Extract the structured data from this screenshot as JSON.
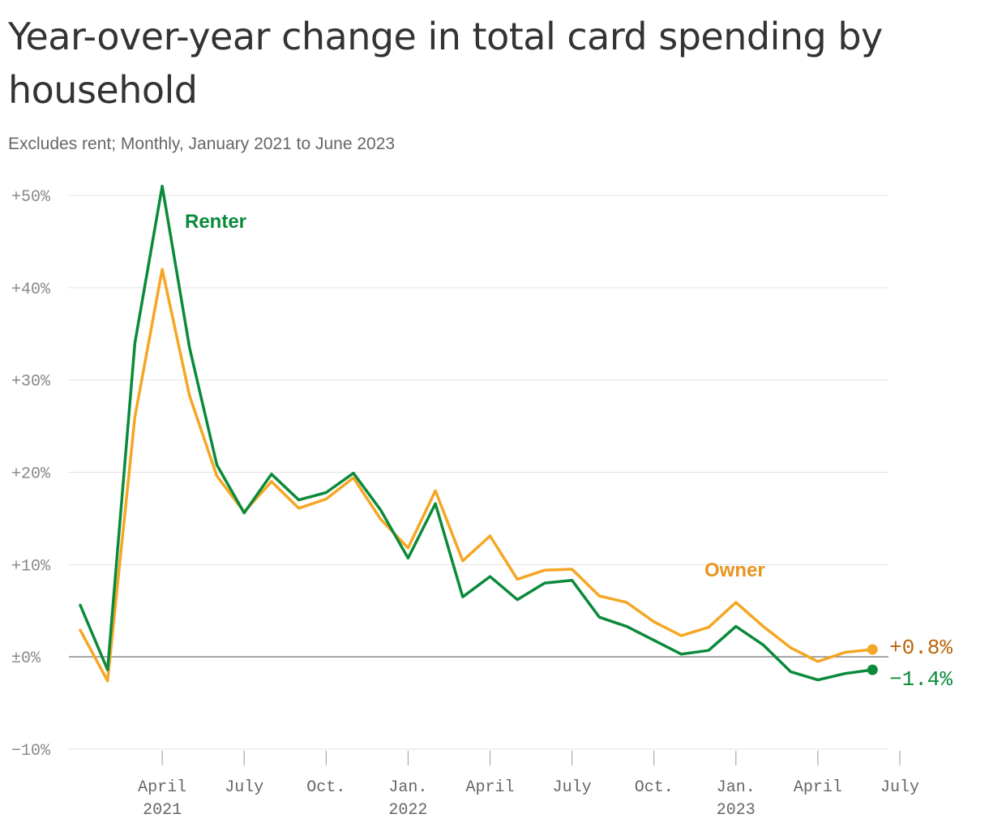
{
  "title": "Year-over-year change in total card spending by household",
  "subtitle": "Excludes rent; Monthly, January 2021 to June 2023",
  "colors": {
    "renter": "#0a8a3a",
    "owner": "#f5a623",
    "owner_label": "#e8951e",
    "owner_end_label": "#b8650a",
    "grid": "#e2e2e2",
    "zero_line": "#888888"
  },
  "chart_data": {
    "type": "line",
    "x": [
      "2021-01",
      "2021-02",
      "2021-03",
      "2021-04",
      "2021-05",
      "2021-06",
      "2021-07",
      "2021-08",
      "2021-09",
      "2021-10",
      "2021-11",
      "2021-12",
      "2022-01",
      "2022-02",
      "2022-03",
      "2022-04",
      "2022-05",
      "2022-06",
      "2022-07",
      "2022-08",
      "2022-09",
      "2022-10",
      "2022-11",
      "2022-12",
      "2023-01",
      "2023-02",
      "2023-03",
      "2023-04",
      "2023-05",
      "2023-06"
    ],
    "series": [
      {
        "name": "Renter",
        "end_label": "−1.4%",
        "values": [
          5.6,
          -1.4,
          34.0,
          51.0,
          33.5,
          20.8,
          15.6,
          19.8,
          17.0,
          17.8,
          19.9,
          15.9,
          10.7,
          16.6,
          6.5,
          8.7,
          6.2,
          8.0,
          8.3,
          4.3,
          3.3,
          1.8,
          0.3,
          0.7,
          3.3,
          1.3,
          -1.6,
          -2.5,
          -1.8,
          -1.4
        ]
      },
      {
        "name": "Owner",
        "end_label": "+0.8%",
        "values": [
          2.9,
          -2.6,
          26.0,
          42.0,
          28.3,
          19.6,
          15.7,
          19.0,
          16.1,
          17.1,
          19.4,
          14.9,
          11.8,
          18.0,
          10.4,
          13.1,
          8.4,
          9.4,
          9.5,
          6.6,
          5.9,
          3.8,
          2.3,
          3.2,
          5.9,
          3.3,
          1.0,
          -0.5,
          0.5,
          0.8
        ]
      }
    ],
    "y_ticks": [
      "+50%",
      "+40%",
      "+30%",
      "+20%",
      "+10%",
      "±0%",
      "−10%"
    ],
    "y_tick_values": [
      50,
      40,
      30,
      20,
      10,
      0,
      -10
    ],
    "x_ticks": [
      {
        "date": "2021-04",
        "label": "April",
        "year": "2021"
      },
      {
        "date": "2021-07",
        "label": "July",
        "year": ""
      },
      {
        "date": "2021-10",
        "label": "Oct.",
        "year": ""
      },
      {
        "date": "2022-01",
        "label": "Jan.",
        "year": "2022"
      },
      {
        "date": "2022-04",
        "label": "April",
        "year": ""
      },
      {
        "date": "2022-07",
        "label": "July",
        "year": ""
      },
      {
        "date": "2022-10",
        "label": "Oct.",
        "year": ""
      },
      {
        "date": "2023-01",
        "label": "Jan.",
        "year": "2023"
      },
      {
        "date": "2023-04",
        "label": "April",
        "year": ""
      },
      {
        "date": "2023-07",
        "label": "July",
        "year": ""
      }
    ],
    "ylim": [
      -10,
      50
    ],
    "grid": true,
    "xlabel": "",
    "ylabel": ""
  }
}
